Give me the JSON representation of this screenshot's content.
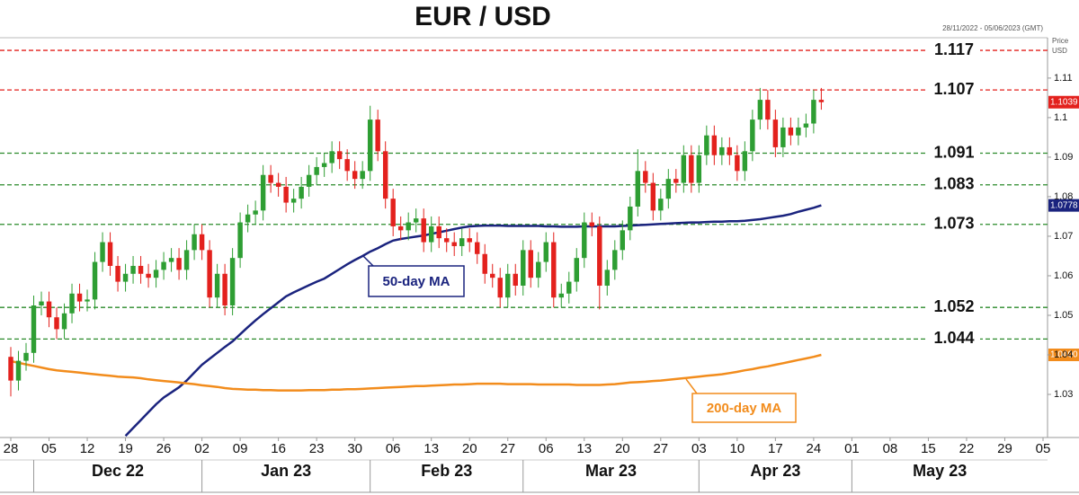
{
  "chart_data": {
    "type": "candlestick",
    "title": "EUR / USD",
    "date_range": "28/11/2022 - 05/06/2023 (GMT)",
    "axis_label": "Price",
    "axis_unit": "USD",
    "x": [
      "2022-11-28",
      "2022-11-29",
      "2022-11-30",
      "2022-12-01",
      "2022-12-02",
      "2022-12-05",
      "2022-12-06",
      "2022-12-07",
      "2022-12-08",
      "2022-12-09",
      "2022-12-12",
      "2022-12-13",
      "2022-12-14",
      "2022-12-15",
      "2022-12-16",
      "2022-12-19",
      "2022-12-20",
      "2022-12-21",
      "2022-12-22",
      "2022-12-23",
      "2022-12-26",
      "2022-12-27",
      "2022-12-28",
      "2022-12-29",
      "2022-12-30",
      "2023-01-02",
      "2023-01-03",
      "2023-01-04",
      "2023-01-05",
      "2023-01-06",
      "2023-01-09",
      "2023-01-10",
      "2023-01-11",
      "2023-01-12",
      "2023-01-13",
      "2023-01-16",
      "2023-01-17",
      "2023-01-18",
      "2023-01-19",
      "2023-01-20",
      "2023-01-23",
      "2023-01-24",
      "2023-01-25",
      "2023-01-26",
      "2023-01-27",
      "2023-01-30",
      "2023-01-31",
      "2023-02-01",
      "2023-02-02",
      "2023-02-03",
      "2023-02-06",
      "2023-02-07",
      "2023-02-08",
      "2023-02-09",
      "2023-02-10",
      "2023-02-13",
      "2023-02-14",
      "2023-02-15",
      "2023-02-16",
      "2023-02-17",
      "2023-02-20",
      "2023-02-21",
      "2023-02-22",
      "2023-02-23",
      "2023-02-24",
      "2023-02-27",
      "2023-02-28",
      "2023-03-01",
      "2023-03-02",
      "2023-03-03",
      "2023-03-06",
      "2023-03-07",
      "2023-03-08",
      "2023-03-09",
      "2023-03-10",
      "2023-03-13",
      "2023-03-14",
      "2023-03-15",
      "2023-03-16",
      "2023-03-17",
      "2023-03-20",
      "2023-03-21",
      "2023-03-22",
      "2023-03-23",
      "2023-03-24",
      "2023-03-27",
      "2023-03-28",
      "2023-03-29",
      "2023-03-30",
      "2023-03-31",
      "2023-04-03",
      "2023-04-04",
      "2023-04-05",
      "2023-04-06",
      "2023-04-07",
      "2023-04-10",
      "2023-04-11",
      "2023-04-12",
      "2023-04-13",
      "2023-04-14",
      "2023-04-17",
      "2023-04-18",
      "2023-04-19",
      "2023-04-20",
      "2023-04-21",
      "2023-04-24",
      "2023-04-25"
    ],
    "open": [
      1.0395,
      1.0335,
      1.0385,
      1.0405,
      1.0525,
      1.0535,
      1.0495,
      1.0465,
      1.0505,
      1.0555,
      1.0535,
      1.054,
      1.0635,
      1.0685,
      1.0625,
      1.0585,
      1.0605,
      1.0625,
      1.0605,
      1.0595,
      1.0615,
      1.0635,
      1.0645,
      1.0615,
      1.0665,
      1.0705,
      1.0665,
      1.0545,
      1.0605,
      1.0525,
      1.0645,
      1.0735,
      1.0755,
      1.0765,
      1.0855,
      1.0835,
      1.0825,
      1.0785,
      1.0795,
      1.0825,
      1.0855,
      1.0875,
      1.0885,
      1.0915,
      1.0895,
      1.0865,
      1.0845,
      1.0865,
      1.0995,
      1.0915,
      1.0795,
      1.0725,
      1.0715,
      1.0735,
      1.0745,
      1.0685,
      1.0725,
      1.0695,
      1.0685,
      1.0675,
      1.0695,
      1.0685,
      1.0655,
      1.0605,
      1.0595,
      1.0545,
      1.0605,
      1.0575,
      1.0665,
      1.0595,
      1.0635,
      1.0685,
      1.0545,
      1.0555,
      1.0585,
      1.0645,
      1.0735,
      1.0725,
      1.0575,
      1.0615,
      1.0665,
      1.0715,
      1.0775,
      1.0865,
      1.0835,
      1.0765,
      1.0795,
      1.0845,
      1.0835,
      1.0905,
      1.0835,
      1.0905,
      1.0955,
      1.0905,
      1.0925,
      1.0905,
      1.0865,
      1.0915,
      1.0995,
      1.1045,
      1.0995,
      1.0925,
      1.0975,
      1.0955,
      1.0975,
      1.0985,
      1.1045
    ],
    "high": [
      1.042,
      1.041,
      1.043,
      1.055,
      1.056,
      1.056,
      1.052,
      1.053,
      1.058,
      1.058,
      1.0565,
      1.066,
      1.071,
      1.071,
      1.065,
      1.063,
      1.065,
      1.065,
      1.063,
      1.064,
      1.066,
      1.067,
      1.067,
      1.069,
      1.073,
      1.073,
      1.069,
      1.063,
      1.063,
      1.067,
      1.076,
      1.078,
      1.079,
      1.088,
      1.088,
      1.086,
      1.085,
      1.082,
      1.085,
      1.088,
      1.09,
      1.091,
      1.094,
      1.094,
      1.092,
      1.089,
      1.089,
      1.103,
      1.102,
      1.094,
      1.082,
      1.075,
      1.076,
      1.077,
      1.077,
      1.075,
      1.075,
      1.072,
      1.071,
      1.072,
      1.072,
      1.071,
      1.068,
      1.063,
      1.062,
      1.063,
      1.063,
      1.069,
      1.069,
      1.066,
      1.071,
      1.071,
      1.058,
      1.061,
      1.067,
      1.076,
      1.076,
      1.075,
      1.064,
      1.069,
      1.074,
      1.08,
      1.092,
      1.089,
      1.086,
      1.082,
      1.087,
      1.087,
      1.093,
      1.093,
      1.093,
      1.098,
      1.098,
      1.095,
      1.095,
      1.093,
      1.094,
      1.102,
      1.1075,
      1.107,
      1.102,
      1.1,
      1.1,
      1.1,
      1.101,
      1.107,
      1.1075
    ],
    "low": [
      1.0295,
      1.031,
      1.036,
      1.038,
      1.05,
      1.047,
      1.044,
      1.044,
      1.048,
      1.051,
      1.051,
      1.0515,
      1.061,
      1.06,
      1.056,
      1.056,
      1.058,
      1.058,
      1.057,
      1.057,
      1.059,
      1.061,
      1.059,
      1.059,
      1.064,
      1.064,
      1.052,
      1.052,
      1.05,
      1.05,
      1.062,
      1.071,
      1.073,
      1.074,
      1.081,
      1.08,
      1.076,
      1.076,
      1.077,
      1.08,
      1.083,
      1.085,
      1.086,
      1.087,
      1.084,
      1.082,
      1.082,
      1.084,
      1.089,
      1.077,
      1.07,
      1.069,
      1.069,
      1.071,
      1.066,
      1.066,
      1.067,
      1.066,
      1.065,
      1.065,
      1.066,
      1.063,
      1.058,
      1.057,
      1.052,
      1.052,
      1.055,
      1.055,
      1.057,
      1.057,
      1.061,
      1.052,
      1.052,
      1.053,
      1.056,
      1.062,
      1.07,
      1.0515,
      1.055,
      1.059,
      1.064,
      1.069,
      1.075,
      1.081,
      1.074,
      1.074,
      1.077,
      1.081,
      1.081,
      1.081,
      1.081,
      1.088,
      1.088,
      1.088,
      1.088,
      1.084,
      1.084,
      1.089,
      1.097,
      1.097,
      1.09,
      1.09,
      1.093,
      1.093,
      1.095,
      1.096,
      1.102
    ],
    "close": [
      1.0335,
      1.0385,
      1.0405,
      1.0525,
      1.0535,
      1.0495,
      1.0465,
      1.0505,
      1.0555,
      1.0535,
      1.054,
      1.0635,
      1.0685,
      1.0625,
      1.0585,
      1.0605,
      1.0625,
      1.0605,
      1.0595,
      1.0615,
      1.0635,
      1.0645,
      1.0615,
      1.0665,
      1.0705,
      1.0665,
      1.0545,
      1.0605,
      1.0525,
      1.0645,
      1.0735,
      1.0755,
      1.0765,
      1.0855,
      1.0835,
      1.0825,
      1.0785,
      1.0795,
      1.0825,
      1.0855,
      1.0875,
      1.0885,
      1.0915,
      1.0895,
      1.0865,
      1.0845,
      1.0865,
      1.0995,
      1.0915,
      1.0795,
      1.0725,
      1.0715,
      1.0735,
      1.0745,
      1.0685,
      1.0725,
      1.0695,
      1.0685,
      1.0675,
      1.0695,
      1.0685,
      1.0655,
      1.0605,
      1.0595,
      1.0545,
      1.0605,
      1.0575,
      1.0665,
      1.0595,
      1.0635,
      1.0685,
      1.0545,
      1.0555,
      1.0585,
      1.0645,
      1.0735,
      1.0725,
      1.0575,
      1.0615,
      1.0665,
      1.0715,
      1.0775,
      1.0865,
      1.0835,
      1.0765,
      1.0795,
      1.0845,
      1.0835,
      1.0905,
      1.0835,
      1.0905,
      1.0955,
      1.0905,
      1.0925,
      1.0905,
      1.0865,
      1.0915,
      1.0995,
      1.1045,
      1.0995,
      1.0925,
      1.0975,
      1.0955,
      1.0975,
      1.0985,
      1.1045,
      1.1039
    ],
    "up_color": "#2e9e33",
    "down_color": "#e3211d",
    "series": [
      {
        "name": "50-day MA",
        "color": "#1a237e",
        "values": [
          null,
          null,
          null,
          null,
          null,
          null,
          null,
          null,
          null,
          null,
          null,
          null,
          null,
          null,
          null,
          1.0195,
          1.0215,
          1.0235,
          1.0255,
          1.0275,
          1.0292,
          1.0305,
          1.0318,
          1.0335,
          1.0355,
          1.0375,
          1.039,
          1.0405,
          1.042,
          1.0434,
          1.0452,
          1.047,
          1.0487,
          1.0503,
          1.0518,
          1.0533,
          1.0548,
          1.0558,
          1.0567,
          1.0576,
          1.0585,
          1.0593,
          1.0605,
          1.0617,
          1.0629,
          1.064,
          1.065,
          1.0661,
          1.067,
          1.068,
          1.0689,
          1.0693,
          1.0696,
          1.0699,
          1.0702,
          1.0706,
          1.071,
          1.0714,
          1.0718,
          1.0722,
          1.0725,
          1.0726,
          1.0727,
          1.0727,
          1.0727,
          1.0726,
          1.0726,
          1.0726,
          1.0726,
          1.0726,
          1.0725,
          1.0725,
          1.0724,
          1.0724,
          1.0724,
          1.0725,
          1.0725,
          1.0725,
          1.0725,
          1.0725,
          1.0726,
          1.0727,
          1.0728,
          1.0729,
          1.073,
          1.0731,
          1.0732,
          1.0733,
          1.0734,
          1.0735,
          1.0735,
          1.0736,
          1.0737,
          1.0737,
          1.0738,
          1.0738,
          1.0739,
          1.0741,
          1.0743,
          1.0746,
          1.0749,
          1.0752,
          1.0756,
          1.0762,
          1.0767,
          1.0772,
          1.0778
        ]
      },
      {
        "name": "200-day MA",
        "color": "#f28c1c",
        "values": [
          1.0384,
          1.038,
          1.0376,
          1.0372,
          1.0368,
          1.0364,
          1.0361,
          1.0359,
          1.0357,
          1.0355,
          1.0353,
          1.0351,
          1.0349,
          1.0347,
          1.0345,
          1.0344,
          1.0343,
          1.0341,
          1.0338,
          1.0336,
          1.0334,
          1.0332,
          1.033,
          1.0328,
          1.0326,
          1.0323,
          1.0321,
          1.0319,
          1.0316,
          1.0314,
          1.0313,
          1.0312,
          1.0312,
          1.0311,
          1.0311,
          1.031,
          1.031,
          1.031,
          1.031,
          1.0311,
          1.0311,
          1.0311,
          1.0312,
          1.0312,
          1.0313,
          1.0313,
          1.0314,
          1.0315,
          1.0316,
          1.0317,
          1.0318,
          1.0319,
          1.032,
          1.0321,
          1.0321,
          1.0322,
          1.0323,
          1.0324,
          1.0325,
          1.0325,
          1.0326,
          1.0327,
          1.0327,
          1.0327,
          1.0327,
          1.0326,
          1.0326,
          1.0326,
          1.0326,
          1.0325,
          1.0325,
          1.0325,
          1.0325,
          1.0325,
          1.0324,
          1.0324,
          1.0324,
          1.0324,
          1.0325,
          1.0326,
          1.0328,
          1.033,
          1.0331,
          1.0332,
          1.0334,
          1.0335,
          1.0337,
          1.0339,
          1.0341,
          1.0343,
          1.0345,
          1.0347,
          1.0349,
          1.0351,
          1.0354,
          1.0357,
          1.0361,
          1.0364,
          1.0368,
          1.0371,
          1.0375,
          1.0379,
          1.0383,
          1.0387,
          1.0391,
          1.0395,
          1.04
        ],
        "value_labels": [
          null,
          null,
          null,
          null,
          null,
          null,
          null,
          null,
          null,
          null,
          null,
          null,
          null,
          null,
          null,
          null,
          null,
          null,
          null,
          null,
          null,
          null,
          null,
          null,
          null,
          null,
          null,
          null,
          null,
          null,
          null,
          null,
          null,
          null,
          null,
          null,
          null,
          null,
          null,
          null,
          null,
          null,
          null,
          null,
          null,
          null,
          null,
          null,
          null,
          null,
          null,
          null,
          null,
          null,
          null,
          null,
          null,
          null,
          null,
          null,
          null,
          null,
          null,
          null,
          null,
          null,
          null,
          null,
          null,
          null,
          null,
          null,
          null,
          null,
          null,
          null,
          null,
          null,
          null,
          null,
          null,
          null,
          null,
          null,
          null,
          null,
          null,
          null,
          null,
          null,
          null,
          null,
          null,
          null,
          null,
          null,
          null,
          null,
          null,
          null,
          null,
          null,
          null,
          null,
          null,
          null,
          "1.0400"
        ]
      }
    ],
    "levels": [
      {
        "value": 1.117,
        "color": "#e3211d"
      },
      {
        "value": 1.107,
        "color": "#e3211d"
      },
      {
        "value": 1.091,
        "color": "#2a8a2a"
      },
      {
        "value": 1.083,
        "color": "#2a8a2a"
      },
      {
        "value": 1.073,
        "color": "#2a8a2a"
      },
      {
        "value": 1.052,
        "color": "#2a8a2a"
      },
      {
        "value": 1.044,
        "color": "#2a8a2a"
      }
    ],
    "xlim": [
      "2022-11-28",
      "2023-06-05"
    ],
    "xticks": [
      {
        "value": "2022-11-28",
        "label": "28"
      },
      {
        "value": "2022-12-05",
        "label": "05"
      },
      {
        "value": "2022-12-12",
        "label": "12"
      },
      {
        "value": "2022-12-19",
        "label": "19"
      },
      {
        "value": "2022-12-26",
        "label": "26"
      },
      {
        "value": "2023-01-02",
        "label": "02"
      },
      {
        "value": "2023-01-09",
        "label": "09"
      },
      {
        "value": "2023-01-16",
        "label": "16"
      },
      {
        "value": "2023-01-23",
        "label": "23"
      },
      {
        "value": "2023-01-30",
        "label": "30"
      },
      {
        "value": "2023-02-06",
        "label": "06"
      },
      {
        "value": "2023-02-13",
        "label": "13"
      },
      {
        "value": "2023-02-20",
        "label": "20"
      },
      {
        "value": "2023-02-27",
        "label": "27"
      },
      {
        "value": "2023-03-06",
        "label": "06"
      },
      {
        "value": "2023-03-13",
        "label": "13"
      },
      {
        "value": "2023-03-20",
        "label": "20"
      },
      {
        "value": "2023-03-27",
        "label": "27"
      },
      {
        "value": "2023-04-03",
        "label": "03"
      },
      {
        "value": "2023-04-10",
        "label": "10"
      },
      {
        "value": "2023-04-17",
        "label": "17"
      },
      {
        "value": "2023-04-24",
        "label": "24"
      },
      {
        "value": "2023-05-01",
        "label": "01"
      },
      {
        "value": "2023-05-08",
        "label": "08"
      },
      {
        "value": "2023-05-15",
        "label": "15"
      },
      {
        "value": "2023-05-22",
        "label": "22"
      },
      {
        "value": "2023-05-29",
        "label": "29"
      },
      {
        "value": "2023-06-05",
        "label": "05"
      }
    ],
    "months": [
      {
        "value": "2022-12-01",
        "label": "Dec 22"
      },
      {
        "value": "2023-01-01",
        "label": "Jan 23"
      },
      {
        "value": "2023-02-01",
        "label": "Feb 23"
      },
      {
        "value": "2023-03-01",
        "label": "Mar 23"
      },
      {
        "value": "2023-04-01",
        "label": "Apr 23"
      },
      {
        "value": "2023-05-01",
        "label": "May 23"
      }
    ],
    "ylim": [
      1.0191,
      1.1202
    ],
    "yticks": [
      1.03,
      1.04,
      1.05,
      1.06,
      1.07,
      1.08,
      1.09,
      1.1,
      1.11
    ]
  }
}
